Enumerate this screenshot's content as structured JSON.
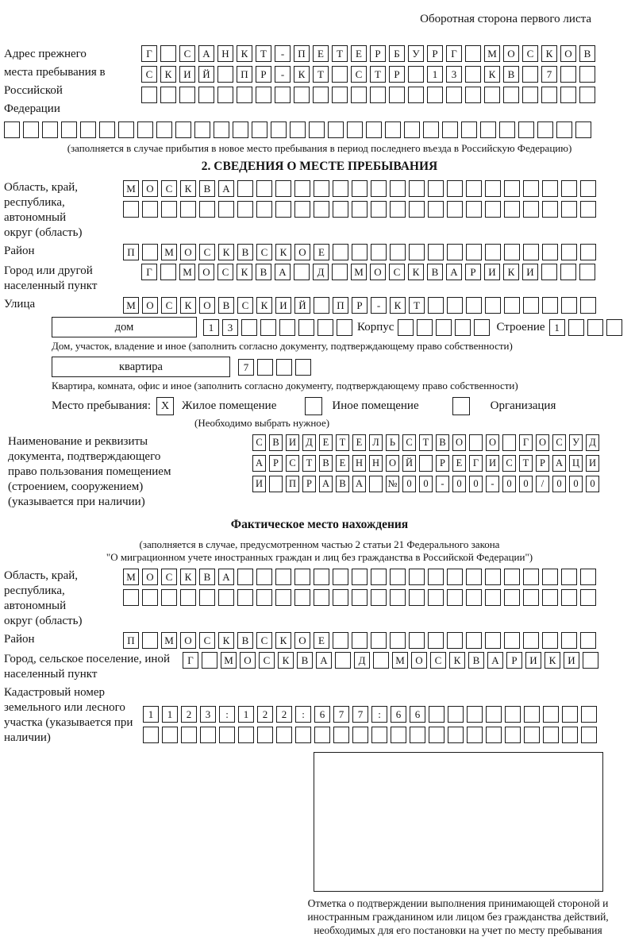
{
  "header": {
    "back_side_note": "Оборотная сторона первого листа"
  },
  "prev_address": {
    "label": "Адрес прежнего места пребывания в Российской Федерации",
    "row1": "Г САНКТ-ПЕТЕРБУРГ МОСКОВ",
    "row2": "СКИЙ ПР-КТ СТР 13 КВ 7",
    "row3": "",
    "row4": "",
    "note": "(заполняется в случае прибытия в новое место пребывания в период последнего въезда в Российскую Федерацию)"
  },
  "section2": {
    "title": "2. СВЕДЕНИЯ О МЕСТЕ ПРЕБЫВАНИЯ",
    "region": {
      "label": "Область, край, республика, автономный округ (область)",
      "row1": "МОСКВА",
      "row2": ""
    },
    "district": {
      "label": "Район",
      "row1": "П МОСКВСКОЕ"
    },
    "city": {
      "label": "Город или другой населенный пункт",
      "row1": "Г МОСКВА Д МОСКВАРИКИ"
    },
    "street": {
      "label": "Улица",
      "row1": "МОСКОВСКИЙ ПР-КТ"
    },
    "house": {
      "box_label": "дом",
      "cells": "13",
      "korpus_label": "Корпус",
      "korpus_cells": "",
      "stroenie_label": "Строение",
      "stroenie_cells": "1",
      "note": "Дом, участок, владение и иное (заполнить согласно документу, подтверждающему право собственности)"
    },
    "apartment": {
      "box_label": "квартира",
      "cells": "7",
      "note": "Квартира, комната, офис и иное (заполнить согласно документу, подтверждающему право собственности)"
    },
    "stay_place": {
      "label": "Место пребывания:",
      "options": [
        {
          "label": "Жилое помещение",
          "mark": "X"
        },
        {
          "label": "Иное помещение",
          "mark": ""
        },
        {
          "label": "Организация",
          "mark": ""
        }
      ],
      "note": "(Необходимо выбрать нужное)"
    },
    "document": {
      "label": "Наименование и реквизиты документа, подтверждающего право пользования помещением (строением, сооружением) (указывается при наличии)",
      "row1": "СВИДЕТЕЛЬСТВО О ГОСУД",
      "row2": "АРСТВЕННОЙ РЕГИСТРАЦИ",
      "row3": "И ПРАВА №00-00-00/000"
    }
  },
  "actual_location": {
    "title": "Фактическое место нахождения",
    "note_line1": "(заполняется в случае, предусмотренном частью 2 статьи 21 Федерального закона",
    "note_line2": "\"О миграционном учете иностранных граждан и лиц без гражданства в Российской Федерации\")",
    "region": {
      "label": "Область, край, республика, автономный округ (область)",
      "row1": "МОСКВА",
      "row2": ""
    },
    "district": {
      "label": "Район",
      "row1": "П МОСКВСКОЕ"
    },
    "city": {
      "label": "Город, сельское поселение, иной населенный пункт",
      "row1": "Г МОСКВА Д МОСКВАРИКИ"
    },
    "cadastral": {
      "label": "Кадастровый номер земельного или лесного участка (указывается при наличии)",
      "row1": "1123:122:677:66",
      "row2": ""
    },
    "stamp_caption": "Отметка о подтверждении выполнения принимающей стороной и иностранным гражданином или лицом без гражданства действий, необходимых для его постановки на учет по месту пребывания"
  }
}
